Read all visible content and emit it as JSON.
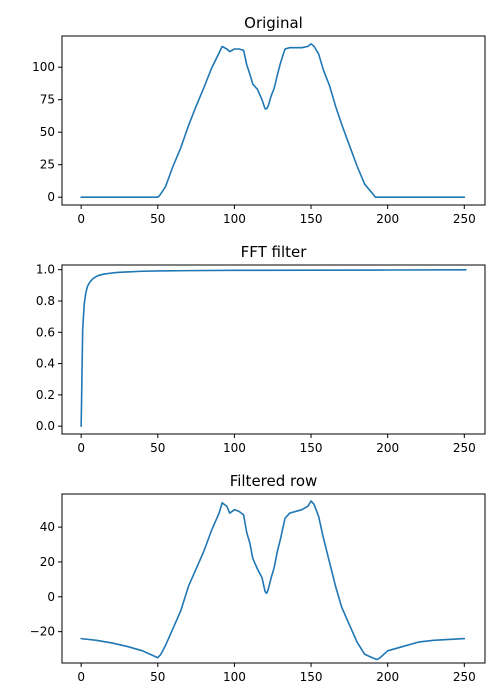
{
  "chart_data": [
    {
      "type": "line",
      "title": "Original",
      "xlabel": "",
      "ylabel": "",
      "grid": false,
      "xlim": [
        -12.5,
        263.5
      ],
      "ylim": [
        -6,
        124
      ],
      "xticks": [
        0,
        50,
        100,
        150,
        200,
        250
      ],
      "yticks": [
        0,
        25,
        50,
        75,
        100
      ],
      "xtick_labels": [
        "0",
        "50",
        "100",
        "150",
        "200",
        "250"
      ],
      "ytick_labels": [
        "0",
        "25",
        "50",
        "75",
        "100"
      ],
      "color": "#1f77b4",
      "x": [
        0,
        10,
        20,
        30,
        40,
        50,
        51,
        55,
        60,
        65,
        70,
        75,
        80,
        85,
        90,
        92,
        95,
        97,
        100,
        103,
        106,
        108,
        110,
        112,
        115,
        118,
        120,
        121,
        122,
        124,
        126,
        128,
        130,
        133,
        136,
        140,
        144,
        148,
        150,
        152,
        155,
        158,
        162,
        166,
        170,
        175,
        180,
        185,
        190,
        192,
        194,
        195,
        200,
        210,
        220,
        230,
        240,
        250
      ],
      "values": [
        0,
        0,
        0,
        0,
        0,
        0,
        1,
        8,
        24,
        38,
        55,
        70,
        84,
        99,
        111,
        116,
        114,
        112,
        114,
        114,
        113,
        102,
        95,
        87,
        83,
        75,
        68,
        68,
        70,
        78,
        84,
        94,
        103,
        114,
        115,
        115,
        115,
        116,
        118,
        116,
        110,
        98,
        86,
        70,
        56,
        40,
        24,
        10,
        3,
        0,
        0,
        0,
        0,
        0,
        0,
        0,
        0,
        0
      ]
    },
    {
      "type": "line",
      "title": "FFT filter",
      "xlabel": "",
      "ylabel": "",
      "grid": false,
      "xlim": [
        -12.5,
        263.5
      ],
      "ylim": [
        -0.05,
        1.03
      ],
      "xticks": [
        0,
        50,
        100,
        150,
        200,
        250
      ],
      "yticks": [
        0.0,
        0.2,
        0.4,
        0.6,
        0.8,
        1.0
      ],
      "xtick_labels": [
        "0",
        "50",
        "100",
        "150",
        "200",
        "250"
      ],
      "ytick_labels": [
        "0.0",
        "0.2",
        "0.4",
        "0.6",
        "0.8",
        "1.0"
      ],
      "color": "#1f77b4",
      "x": [
        0,
        1,
        2,
        3,
        4,
        5,
        6,
        8,
        10,
        12,
        15,
        20,
        25,
        30,
        40,
        50,
        70,
        100,
        150,
        200,
        251
      ],
      "values": [
        0,
        0.62,
        0.78,
        0.85,
        0.89,
        0.91,
        0.925,
        0.945,
        0.957,
        0.965,
        0.972,
        0.979,
        0.983,
        0.986,
        0.99,
        0.992,
        0.994,
        0.996,
        0.997,
        0.998,
        0.999
      ]
    },
    {
      "type": "line",
      "title": "Filtered row",
      "xlabel": "",
      "ylabel": "",
      "grid": false,
      "xlim": [
        -12.5,
        263.5
      ],
      "ylim": [
        -38,
        59
      ],
      "xticks": [
        0,
        50,
        100,
        150,
        200,
        250
      ],
      "yticks": [
        -20,
        0,
        20,
        40
      ],
      "xtick_labels": [
        "0",
        "50",
        "100",
        "150",
        "200",
        "250"
      ],
      "ytick_labels": [
        "−20",
        "0",
        "20",
        "40"
      ],
      "color": "#1f77b4",
      "x": [
        0,
        10,
        20,
        30,
        40,
        50,
        52,
        55,
        60,
        65,
        70,
        75,
        80,
        85,
        90,
        92,
        95,
        97,
        100,
        103,
        106,
        108,
        110,
        112,
        115,
        118,
        120,
        121,
        122,
        124,
        126,
        128,
        130,
        133,
        136,
        140,
        144,
        148,
        150,
        152,
        155,
        158,
        162,
        166,
        170,
        175,
        180,
        185,
        190,
        193,
        195,
        200,
        210,
        220,
        230,
        240,
        250
      ],
      "values": [
        -24,
        -25,
        -26.5,
        -28.5,
        -31,
        -35,
        -33,
        -28,
        -18,
        -8,
        6,
        16,
        26,
        38,
        48,
        54,
        52,
        48,
        50,
        49,
        47,
        37,
        31,
        22,
        16,
        11,
        3,
        2,
        4,
        11,
        17,
        26,
        33,
        45,
        48,
        49,
        50,
        52,
        55,
        53,
        46,
        34,
        20,
        6,
        -6,
        -16,
        -26,
        -33,
        -35,
        -36,
        -35,
        -31,
        -28.5,
        -26,
        -25,
        -24.5,
        -24
      ]
    }
  ]
}
